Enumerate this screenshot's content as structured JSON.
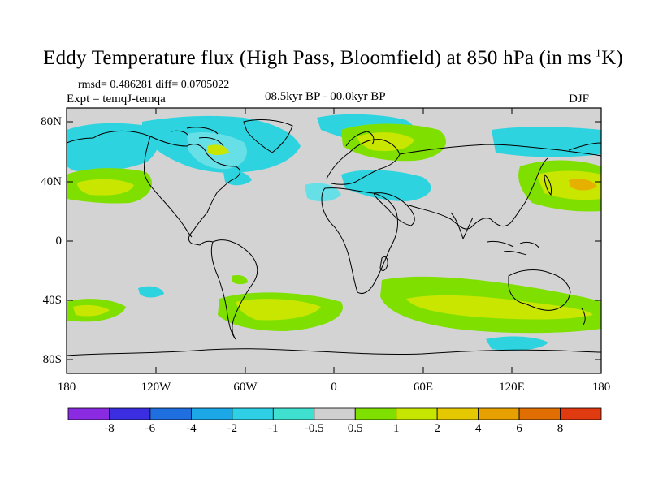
{
  "title": {
    "main": "Eddy Temperature flux (High Pass, Bloomfield) at 850 hPa (in ms",
    "superscript": "-1",
    "tail": "K)"
  },
  "stats": {
    "rmsd_diff": "rmsd= 0.486281 diff= 0.0705022",
    "expt": "Expt = temqJ-temqa",
    "period": "08.5kyr BP - 00.0kyr BP",
    "season": "DJF"
  },
  "axes": {
    "lat_ticks": [
      "80N",
      "40N",
      "0",
      "40S",
      "80S"
    ],
    "lon_ticks": [
      "180",
      "120W",
      "60W",
      "0",
      "60E",
      "120E",
      "180"
    ]
  },
  "colorbar": {
    "colors": [
      "#8a2be2",
      "#3a2ee0",
      "#1f6fe0",
      "#1ca7e6",
      "#2fd0e6",
      "#40e0d0",
      "#d0d0d0",
      "#7fe000",
      "#c6e600",
      "#e6c800",
      "#e6a000",
      "#e06e00",
      "#e03a10"
    ],
    "labels": [
      "-8",
      "-6",
      "-4",
      "-2",
      "-1",
      "-0.5",
      "0.5",
      "1",
      "2",
      "4",
      "6",
      "8"
    ]
  },
  "legend_colors": {
    "neutral": "#d3d3d3",
    "cyan": "#2dd4e0",
    "light_cyan": "#66e0e6",
    "green": "#7fe000",
    "yellow_green": "#c8e600",
    "orange": "#e6b000"
  }
}
